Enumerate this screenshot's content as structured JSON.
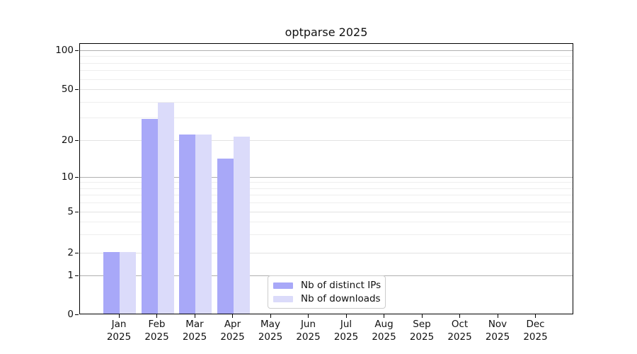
{
  "title": "optparse 2025",
  "axes": {
    "y_tick_labels": [
      "100",
      "50",
      "20",
      "10",
      "5",
      "2",
      "1",
      "0"
    ],
    "x_tick_labels": [
      "Jan\n2025",
      "Feb\n2025",
      "Mar\n2025",
      "Apr\n2025",
      "May\n2025",
      "Jun\n2025",
      "Jul\n2025",
      "Aug\n2025",
      "Sep\n2025",
      "Oct\n2025",
      "Nov\n2025",
      "Dec\n2025"
    ]
  },
  "legend": {
    "items": [
      {
        "label": "Nb of distinct IPs",
        "color": "#a8a8f8"
      },
      {
        "label": "Nb of downloads",
        "color": "#dbdbfa"
      }
    ]
  },
  "colors": {
    "series_dark": "#a8a8f8",
    "series_light": "#dbdbfa",
    "grid_decade": "#b0b0b0",
    "grid_light": "#e2e2e2",
    "background": "#ffffff"
  },
  "chart_data": {
    "type": "bar",
    "title": "optparse 2025",
    "categories": [
      "Jan 2025",
      "Feb 2025",
      "Mar 2025",
      "Apr 2025",
      "May 2025",
      "Jun 2025",
      "Jul 2025",
      "Aug 2025",
      "Sep 2025",
      "Oct 2025",
      "Nov 2025",
      "Dec 2025"
    ],
    "series": [
      {
        "name": "Nb of distinct IPs",
        "color": "#a8a8f8",
        "values": [
          2,
          29,
          22,
          14,
          0,
          0,
          0,
          0,
          0,
          0,
          0,
          0
        ]
      },
      {
        "name": "Nb of downloads",
        "color": "#dbdbfa",
        "values": [
          2,
          39,
          22,
          21,
          0,
          0,
          0,
          0,
          0,
          0,
          0,
          0
        ]
      }
    ],
    "xlabel": "",
    "ylabel": "",
    "yscale": "log-with-zero",
    "yticks": [
      0,
      1,
      2,
      5,
      10,
      20,
      50,
      100
    ],
    "minor_yticks": [
      3,
      4,
      6,
      7,
      8,
      9,
      30,
      40,
      60,
      70,
      80,
      90
    ],
    "ylim": [
      0,
      115
    ],
    "grid": true,
    "legend_position": "lower center"
  }
}
